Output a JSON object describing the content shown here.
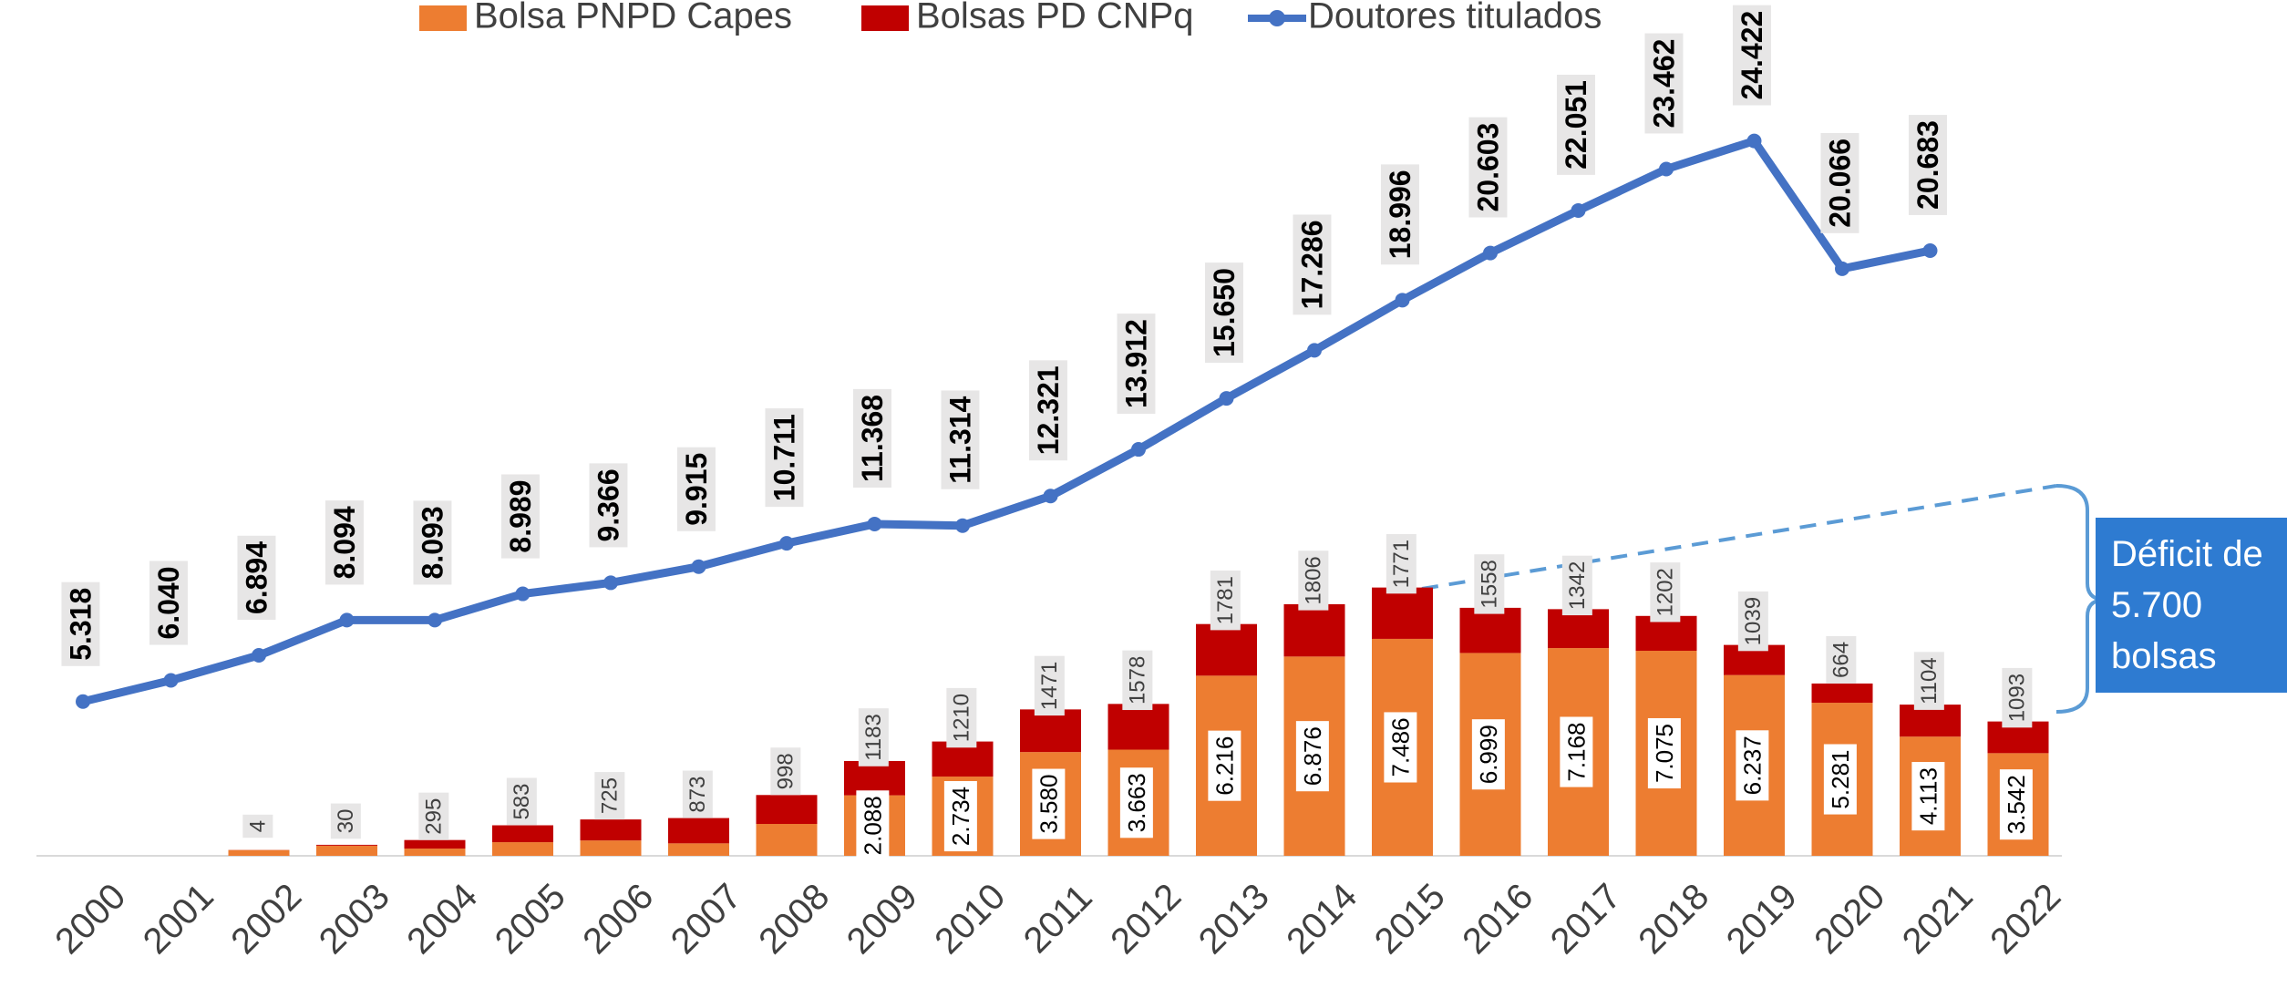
{
  "chart_data": {
    "type": "bar",
    "categories": [
      "2000",
      "2001",
      "2002",
      "2003",
      "2004",
      "2005",
      "2006",
      "2007",
      "2008",
      "2009",
      "2010",
      "2011",
      "2012",
      "2013",
      "2014",
      "2015",
      "2016",
      "2017",
      "2018",
      "2019",
      "2020",
      "2021",
      "2022"
    ],
    "series": [
      {
        "name": "Bolsa PNPD Capes",
        "type": "bar",
        "color": "#ed7d31",
        "values": [
          null,
          null,
          200,
          350,
          250,
          470,
          530,
          430,
          1100,
          2088,
          2734,
          3580,
          3663,
          6216,
          6876,
          7486,
          6999,
          7168,
          7075,
          6237,
          5281,
          4113,
          3542
        ],
        "value_labels": [
          null,
          null,
          null,
          null,
          null,
          null,
          null,
          null,
          null,
          "2.088",
          "2.734",
          "3.580",
          "3.663",
          "6.216",
          "6.876",
          "7.486",
          "6.999",
          "7.168",
          "7.075",
          "6.237",
          "5.281",
          "4.113",
          "3.542"
        ]
      },
      {
        "name": "Bolsas PD CNPq",
        "type": "bar",
        "color": "#c00000",
        "values": [
          null,
          null,
          4,
          30,
          295,
          583,
          725,
          873,
          998,
          1183,
          1210,
          1471,
          1578,
          1781,
          1806,
          1771,
          1558,
          1342,
          1202,
          1039,
          664,
          1104,
          1093
        ]
      },
      {
        "name": "Doutores titulados",
        "type": "line",
        "color": "#4472c4",
        "values": [
          5318,
          6040,
          6894,
          8094,
          8093,
          8989,
          9366,
          9915,
          10711,
          11368,
          11314,
          12321,
          13912,
          15650,
          17286,
          18996,
          20603,
          22051,
          23462,
          24422,
          20066,
          20683,
          null
        ],
        "value_labels": [
          "5.318",
          "6.040",
          "6.894",
          "8.094",
          "8.093",
          "8.989",
          "9.366",
          "9.915",
          "10.711",
          "11.368",
          "11.314",
          "12.321",
          "13.912",
          "15.650",
          "17.286",
          "18.996",
          "20.603",
          "22.051",
          "23.462",
          "24.422",
          "20.066",
          "20.683",
          null
        ]
      }
    ],
    "stacked": true,
    "legend": "top",
    "annotation": "Déficit de 5.700 bolsas"
  }
}
